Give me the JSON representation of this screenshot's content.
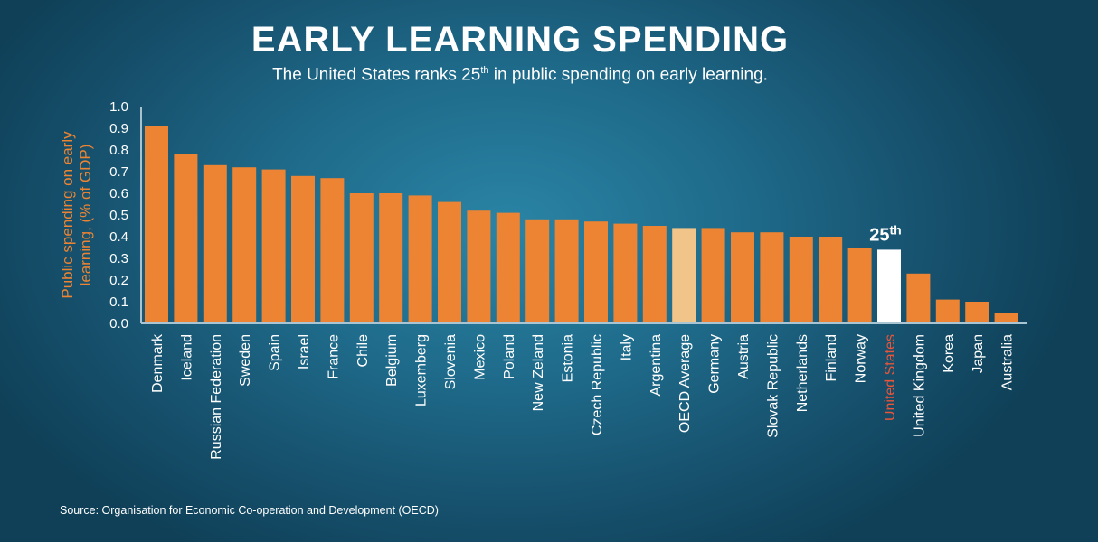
{
  "header": {
    "title": "EARLY LEARNING SPENDING",
    "subtitle_pre": "The United States ranks  25",
    "subtitle_sup": "th",
    "subtitle_post": " in public spending on early learning."
  },
  "footer": {
    "source": "Source: Organisation for Economic Co-operation and Development (OECD)"
  },
  "colors": {
    "bar": "#ec8433",
    "average_bar": "#f1c489",
    "highlight_bar": "#ffffff",
    "highlight_label": "#e8553a",
    "axis_label": "#ec8433",
    "text": "#ffffff"
  },
  "chart_data": {
    "type": "bar",
    "title": "EARLY LEARNING SPENDING",
    "xlabel": "",
    "ylabel": "Public spending on early learning, (% of GDP)",
    "ylabel_lines": [
      "Public spending on early",
      "learning, (% of GDP)"
    ],
    "ylim": [
      0,
      1.0
    ],
    "yticks": [
      "0.0",
      "0.1",
      "0.2",
      "0.3",
      "0.4",
      "0.5",
      "0.6",
      "0.7",
      "0.8",
      "0.9",
      "1.0"
    ],
    "grid": false,
    "categories": [
      "Denmark",
      "Iceland",
      "Russian Federation",
      "Sweden",
      "Spain",
      "Israel",
      "France",
      "Chile",
      "Belgium",
      "Luxemberg",
      "Slovenia",
      "Mexico",
      "Poland",
      "New Zeland",
      "Estonia",
      "Czech Republic",
      "Italy",
      "Argentina",
      "OECD Average",
      "Germany",
      "Austria",
      "Slovak Republic",
      "Netherlands",
      "Finland",
      "Norway",
      "United States",
      "United Kingdom",
      "Korea",
      "Japan",
      "Australia"
    ],
    "values": [
      0.91,
      0.78,
      0.73,
      0.72,
      0.71,
      0.68,
      0.67,
      0.6,
      0.6,
      0.59,
      0.56,
      0.52,
      0.51,
      0.48,
      0.48,
      0.47,
      0.46,
      0.45,
      0.44,
      0.44,
      0.42,
      0.42,
      0.4,
      0.4,
      0.35,
      0.34,
      0.23,
      0.11,
      0.1,
      0.05
    ],
    "average_category": "OECD Average",
    "highlight_category": "United States",
    "annotation": {
      "category": "United States",
      "text_main": "25",
      "text_sup": "th"
    }
  }
}
